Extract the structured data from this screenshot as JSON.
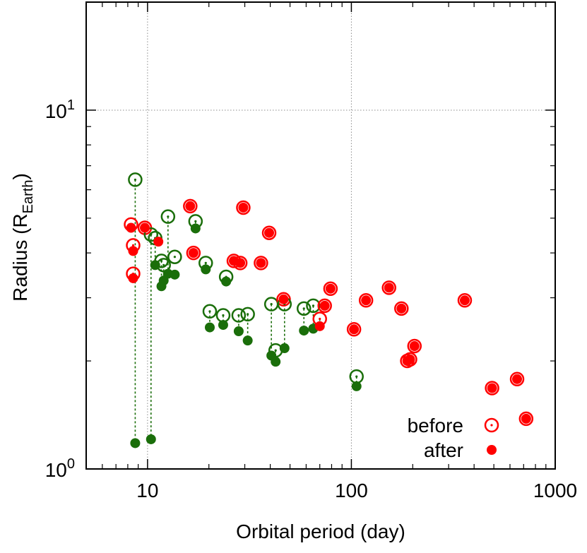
{
  "chart_data": {
    "type": "scatter",
    "title": "",
    "xlabel": "Orbital period (day)",
    "ylabel": "Radius (R",
    "ylabel_sub": "Earth",
    "ylabel_close": ")",
    "xscale": "log",
    "yscale": "log",
    "xlim": [
      5,
      1000
    ],
    "ylim": [
      1,
      20
    ],
    "grid": true,
    "xticks": [
      {
        "value": 10,
        "label": "10"
      },
      {
        "value": 100,
        "label": "100"
      },
      {
        "value": 1000,
        "label": "1000"
      }
    ],
    "yticks": [
      {
        "value": 1,
        "base": "10",
        "exp": "0"
      },
      {
        "value": 10,
        "base": "10",
        "exp": "1"
      }
    ],
    "legend": {
      "placement": "bottom-right",
      "before_label": "before",
      "after_label": "after"
    },
    "colors": {
      "red": "#ff0000",
      "green": "#1a6e0a"
    },
    "series": [
      {
        "name": "before",
        "marker": "open-circle",
        "points": [
          {
            "x": 8.3,
            "y": 4.8,
            "c": "red"
          },
          {
            "x": 8.5,
            "y": 4.2,
            "c": "red"
          },
          {
            "x": 8.5,
            "y": 3.5,
            "c": "red"
          },
          {
            "x": 8.7,
            "y": 6.4,
            "c": "green"
          },
          {
            "x": 9.7,
            "y": 4.7,
            "c": "red"
          },
          {
            "x": 10.4,
            "y": 4.5,
            "c": "green"
          },
          {
            "x": 10.9,
            "y": 4.4,
            "c": "green"
          },
          {
            "x": 11.7,
            "y": 3.8,
            "c": "green"
          },
          {
            "x": 12.0,
            "y": 3.7,
            "c": "green"
          },
          {
            "x": 12.6,
            "y": 5.05,
            "c": "green"
          },
          {
            "x": 13.6,
            "y": 3.9,
            "c": "green"
          },
          {
            "x": 16.2,
            "y": 5.4,
            "c": "red"
          },
          {
            "x": 16.8,
            "y": 4.0,
            "c": "red"
          },
          {
            "x": 17.2,
            "y": 4.9,
            "c": "green"
          },
          {
            "x": 19.3,
            "y": 3.75,
            "c": "green"
          },
          {
            "x": 20.2,
            "y": 2.75,
            "c": "green"
          },
          {
            "x": 23.5,
            "y": 2.68,
            "c": "green"
          },
          {
            "x": 24.3,
            "y": 3.43,
            "c": "green"
          },
          {
            "x": 26.5,
            "y": 3.8,
            "c": "red"
          },
          {
            "x": 28.0,
            "y": 2.68,
            "c": "green"
          },
          {
            "x": 28.5,
            "y": 3.75,
            "c": "red"
          },
          {
            "x": 29.5,
            "y": 5.35,
            "c": "red"
          },
          {
            "x": 31.0,
            "y": 2.7,
            "c": "green"
          },
          {
            "x": 36.0,
            "y": 3.75,
            "c": "red"
          },
          {
            "x": 39.5,
            "y": 4.55,
            "c": "red"
          },
          {
            "x": 40.5,
            "y": 2.88,
            "c": "green"
          },
          {
            "x": 42.5,
            "y": 2.14,
            "c": "green"
          },
          {
            "x": 46.5,
            "y": 2.97,
            "c": "red"
          },
          {
            "x": 47.0,
            "y": 2.88,
            "c": "green"
          },
          {
            "x": 58.5,
            "y": 2.8,
            "c": "green"
          },
          {
            "x": 65.0,
            "y": 2.85,
            "c": "green"
          },
          {
            "x": 70.0,
            "y": 2.62,
            "c": "red"
          },
          {
            "x": 74.0,
            "y": 2.85,
            "c": "red"
          },
          {
            "x": 79.0,
            "y": 3.18,
            "c": "red"
          },
          {
            "x": 103.0,
            "y": 2.45,
            "c": "red"
          },
          {
            "x": 106.0,
            "y": 1.81,
            "c": "green"
          },
          {
            "x": 118.0,
            "y": 2.95,
            "c": "red"
          },
          {
            "x": 153.0,
            "y": 3.2,
            "c": "red"
          },
          {
            "x": 176.0,
            "y": 2.8,
            "c": "red"
          },
          {
            "x": 188.0,
            "y": 2.0,
            "c": "red"
          },
          {
            "x": 194.0,
            "y": 2.02,
            "c": "red"
          },
          {
            "x": 204.0,
            "y": 2.2,
            "c": "red"
          },
          {
            "x": 360.0,
            "y": 2.95,
            "c": "red"
          },
          {
            "x": 490.0,
            "y": 1.68,
            "c": "red"
          },
          {
            "x": 650.0,
            "y": 1.78,
            "c": "red"
          },
          {
            "x": 720.0,
            "y": 1.38,
            "c": "red"
          }
        ]
      },
      {
        "name": "after",
        "marker": "filled-circle",
        "points": [
          {
            "x": 8.3,
            "y": 4.7,
            "c": "red"
          },
          {
            "x": 8.5,
            "y": 4.05,
            "c": "red"
          },
          {
            "x": 8.5,
            "y": 3.4,
            "c": "red"
          },
          {
            "x": 8.7,
            "y": 1.18,
            "c": "green"
          },
          {
            "x": 9.7,
            "y": 4.7,
            "c": "red"
          },
          {
            "x": 10.4,
            "y": 1.21,
            "c": "green"
          },
          {
            "x": 10.9,
            "y": 3.7,
            "c": "green"
          },
          {
            "x": 11.3,
            "y": 4.3,
            "c": "red"
          },
          {
            "x": 11.7,
            "y": 3.23,
            "c": "green"
          },
          {
            "x": 12.0,
            "y": 3.35,
            "c": "green"
          },
          {
            "x": 12.6,
            "y": 3.5,
            "c": "green"
          },
          {
            "x": 13.6,
            "y": 3.48,
            "c": "green"
          },
          {
            "x": 16.2,
            "y": 5.4,
            "c": "red"
          },
          {
            "x": 16.8,
            "y": 4.0,
            "c": "red"
          },
          {
            "x": 17.2,
            "y": 4.68,
            "c": "green"
          },
          {
            "x": 19.3,
            "y": 3.6,
            "c": "green"
          },
          {
            "x": 20.2,
            "y": 2.48,
            "c": "green"
          },
          {
            "x": 23.5,
            "y": 2.52,
            "c": "green"
          },
          {
            "x": 24.3,
            "y": 3.33,
            "c": "green"
          },
          {
            "x": 26.5,
            "y": 3.8,
            "c": "red"
          },
          {
            "x": 28.0,
            "y": 2.42,
            "c": "green"
          },
          {
            "x": 28.5,
            "y": 3.75,
            "c": "red"
          },
          {
            "x": 29.5,
            "y": 5.35,
            "c": "red"
          },
          {
            "x": 31.0,
            "y": 2.28,
            "c": "green"
          },
          {
            "x": 36.0,
            "y": 3.75,
            "c": "red"
          },
          {
            "x": 39.5,
            "y": 4.55,
            "c": "red"
          },
          {
            "x": 40.5,
            "y": 2.07,
            "c": "green"
          },
          {
            "x": 42.5,
            "y": 1.99,
            "c": "green"
          },
          {
            "x": 46.5,
            "y": 2.97,
            "c": "red"
          },
          {
            "x": 47.0,
            "y": 2.17,
            "c": "green"
          },
          {
            "x": 58.5,
            "y": 2.43,
            "c": "green"
          },
          {
            "x": 65.0,
            "y": 2.46,
            "c": "green"
          },
          {
            "x": 70.0,
            "y": 2.5,
            "c": "red"
          },
          {
            "x": 74.0,
            "y": 2.85,
            "c": "red"
          },
          {
            "x": 79.0,
            "y": 3.18,
            "c": "red"
          },
          {
            "x": 103.0,
            "y": 2.45,
            "c": "red"
          },
          {
            "x": 106.0,
            "y": 1.7,
            "c": "green"
          },
          {
            "x": 118.0,
            "y": 2.95,
            "c": "red"
          },
          {
            "x": 153.0,
            "y": 3.2,
            "c": "red"
          },
          {
            "x": 176.0,
            "y": 2.8,
            "c": "red"
          },
          {
            "x": 188.0,
            "y": 2.0,
            "c": "red"
          },
          {
            "x": 194.0,
            "y": 2.02,
            "c": "red"
          },
          {
            "x": 204.0,
            "y": 2.2,
            "c": "red"
          },
          {
            "x": 360.0,
            "y": 2.95,
            "c": "red"
          },
          {
            "x": 490.0,
            "y": 1.68,
            "c": "red"
          },
          {
            "x": 650.0,
            "y": 1.78,
            "c": "red"
          },
          {
            "x": 720.0,
            "y": 1.38,
            "c": "red"
          }
        ]
      }
    ],
    "connectors": [
      {
        "x": 8.7,
        "y1": 6.4,
        "y2": 1.18
      },
      {
        "x": 10.4,
        "y1": 4.5,
        "y2": 1.21
      },
      {
        "x": 10.9,
        "y1": 4.4,
        "y2": 3.7
      },
      {
        "x": 11.7,
        "y1": 3.8,
        "y2": 3.23
      },
      {
        "x": 12.0,
        "y1": 3.7,
        "y2": 3.35
      },
      {
        "x": 12.6,
        "y1": 5.05,
        "y2": 3.5
      },
      {
        "x": 17.2,
        "y1": 4.9,
        "y2": 4.68
      },
      {
        "x": 19.3,
        "y1": 3.75,
        "y2": 3.6
      },
      {
        "x": 20.2,
        "y1": 2.75,
        "y2": 2.48
      },
      {
        "x": 23.5,
        "y1": 2.68,
        "y2": 2.52
      },
      {
        "x": 28.0,
        "y1": 2.68,
        "y2": 2.42
      },
      {
        "x": 31.0,
        "y1": 2.7,
        "y2": 2.28
      },
      {
        "x": 40.5,
        "y1": 2.88,
        "y2": 2.07
      },
      {
        "x": 42.5,
        "y1": 2.14,
        "y2": 1.99
      },
      {
        "x": 47.0,
        "y1": 2.88,
        "y2": 2.17
      },
      {
        "x": 58.5,
        "y1": 2.8,
        "y2": 2.43
      },
      {
        "x": 65.0,
        "y1": 2.85,
        "y2": 2.46
      },
      {
        "x": 70.0,
        "y1": 2.62,
        "y2": 2.5
      },
      {
        "x": 106.0,
        "y1": 1.81,
        "y2": 1.7
      }
    ]
  }
}
